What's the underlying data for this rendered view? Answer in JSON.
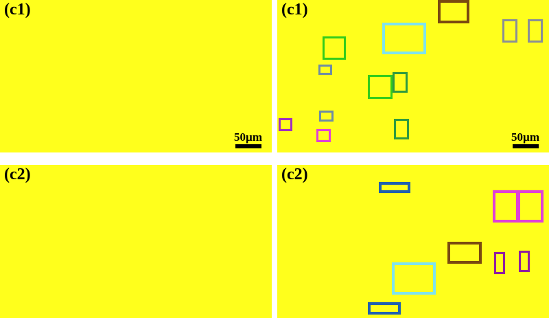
{
  "panels": [
    {
      "label": "(c1)",
      "scale_text": "50µm"
    },
    {
      "label": "(c1)",
      "scale_text": "50µm"
    },
    {
      "label": "(c2)",
      "scale_text": ""
    },
    {
      "label": "(c2)",
      "scale_text": ""
    }
  ],
  "colors": {
    "base_red": "#e8201c",
    "yellow": "#ffff1e",
    "box_cyan": "#7fe3ef",
    "box_green": "#33cc1a",
    "box_dark_green": "#2f9a3f",
    "box_brown": "#7a4a10",
    "box_gray": "#8a8f96",
    "box_slate": "#6f8da3",
    "box_purple": "#a030c0",
    "box_magenta": "#e040d8",
    "box_blue": "#2060b0",
    "box_violet": "#9020a0"
  }
}
